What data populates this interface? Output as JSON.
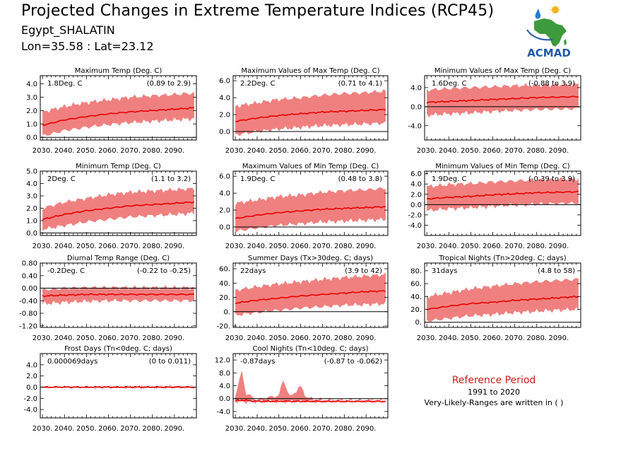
{
  "header": {
    "title": "Projected Changes in Extreme Temperature Indices (RCP45)",
    "location": "Egypt_SHALATIN",
    "coords": "Lon=35.58 : Lat=23.12"
  },
  "logo": {
    "text": "ACMAD",
    "colors": {
      "africa": "#3d9a3d",
      "text": "#1e5aa8",
      "sun": "#f2b01e",
      "drop": "#2a7bd0"
    }
  },
  "reference": {
    "title": "Reference Period",
    "years": "1991 to 2020",
    "note": "Very-Likely-Ranges are written in ( )"
  },
  "colors": {
    "band": "#f08080",
    "line": "#e80000",
    "zero": "#000000"
  },
  "chart_data": [
    {
      "type": "area",
      "title": "Maximum Temp (Deg. C)",
      "summary": "1.8Deg. C",
      "range": "(0.89 to 2.9)",
      "x_ticks": [
        "2030.",
        "2040.",
        "2050.",
        "2060.",
        "2070.",
        "2080.",
        "2090."
      ],
      "y_ticks": [
        "4.0",
        "3.0",
        "2.0",
        "1.0",
        "0.0"
      ],
      "ylim": [
        -0.2,
        4.6
      ],
      "x": [
        2030,
        2040,
        2050,
        2060,
        2070,
        2080,
        2090,
        2099
      ],
      "mean": [
        0.9,
        1.3,
        1.55,
        1.75,
        1.9,
        2.0,
        2.1,
        2.2
      ],
      "low": [
        0.1,
        0.5,
        0.75,
        0.95,
        1.1,
        1.2,
        1.3,
        1.4
      ],
      "high": [
        1.9,
        2.3,
        2.6,
        2.8,
        3.0,
        3.1,
        3.2,
        3.3
      ]
    },
    {
      "type": "area",
      "title": "Maximum Values of Max Temp (Deg. C)",
      "summary": "2.2Deg. C",
      "range": "(0.71 to 4.1)",
      "x_ticks": [
        "2030.",
        "2040.",
        "2050.",
        "2060.",
        "2070.",
        "2080.",
        "2090."
      ],
      "y_ticks": [
        "6.0",
        "4.0",
        "2.0",
        "0.0"
      ],
      "ylim": [
        -1.0,
        6.6
      ],
      "x": [
        2030,
        2040,
        2050,
        2060,
        2070,
        2080,
        2090,
        2099
      ],
      "mean": [
        1.2,
        1.6,
        1.9,
        2.1,
        2.3,
        2.4,
        2.5,
        2.6
      ],
      "low": [
        -0.4,
        0.0,
        0.3,
        0.5,
        0.7,
        0.8,
        0.9,
        1.0
      ],
      "high": [
        3.0,
        3.4,
        3.8,
        4.0,
        4.3,
        4.5,
        4.6,
        4.8
      ]
    },
    {
      "type": "area",
      "title": "Minimum Values of Max Temp (Deg. C)",
      "summary": "1.6Deg. C",
      "range": "(-0.88 to 3.9)",
      "x_ticks": [
        "2030.",
        "2040.",
        "2050.",
        "2060.",
        "2070.",
        "2080.",
        "2090."
      ],
      "y_ticks": [
        "4.0",
        "0.0",
        "-4.0"
      ],
      "ylim": [
        -7.0,
        6.5
      ],
      "x": [
        2030,
        2040,
        2050,
        2060,
        2070,
        2080,
        2090,
        2099
      ],
      "mean": [
        0.9,
        1.1,
        1.3,
        1.5,
        1.7,
        1.9,
        2.0,
        2.1
      ],
      "low": [
        -1.8,
        -1.5,
        -1.3,
        -1.0,
        -0.8,
        -0.6,
        -0.5,
        -0.4
      ],
      "high": [
        3.5,
        3.8,
        4.0,
        4.2,
        4.4,
        4.5,
        4.6,
        4.7
      ]
    },
    {
      "type": "area",
      "title": "Minimum Temp (Deg. C)",
      "summary": "2Deg. C",
      "range": "(1.1 to 3.2)",
      "x_ticks": [
        "2030.",
        "2040.",
        "2050.",
        "2060.",
        "2070.",
        "2080.",
        "2090."
      ],
      "y_ticks": [
        "5.0",
        "4.0",
        "3.0",
        "2.0",
        "1.0",
        "0.0"
      ],
      "ylim": [
        -0.2,
        5.0
      ],
      "x": [
        2030,
        2040,
        2050,
        2060,
        2070,
        2080,
        2090,
        2099
      ],
      "mean": [
        1.1,
        1.5,
        1.8,
        2.0,
        2.2,
        2.3,
        2.4,
        2.5
      ],
      "low": [
        0.3,
        0.6,
        0.9,
        1.1,
        1.3,
        1.4,
        1.5,
        1.6
      ],
      "high": [
        2.0,
        2.5,
        2.8,
        3.1,
        3.3,
        3.4,
        3.5,
        3.6
      ]
    },
    {
      "type": "area",
      "title": "Maximum Values of Min Temp (Deg. C)",
      "summary": "1.9Deg. C",
      "range": "(0.48 to 3.8)",
      "x_ticks": [
        "2030.",
        "2040.",
        "2050.",
        "2060.",
        "2070.",
        "2080.",
        "2090."
      ],
      "y_ticks": [
        "6.0",
        "4.0",
        "2.0",
        "0.0"
      ],
      "ylim": [
        -1.0,
        6.6
      ],
      "x": [
        2030,
        2040,
        2050,
        2060,
        2070,
        2080,
        2090,
        2099
      ],
      "mean": [
        1.0,
        1.4,
        1.7,
        1.9,
        2.1,
        2.2,
        2.3,
        2.4
      ],
      "low": [
        -0.5,
        -0.1,
        0.2,
        0.4,
        0.6,
        0.7,
        0.8,
        0.9
      ],
      "high": [
        2.8,
        3.2,
        3.6,
        3.8,
        4.1,
        4.3,
        4.4,
        4.6
      ]
    },
    {
      "type": "area",
      "title": "Minimum Values of Min Temp (Deg. C)",
      "summary": "1.9Deg. C",
      "range": "(-0.39 to 3.9)",
      "x_ticks": [
        "2030.",
        "2040.",
        "2050.",
        "2060.",
        "2070.",
        "2080.",
        "2090."
      ],
      "y_ticks": [
        "6.0",
        "4.0",
        "2.0",
        "0.0",
        "-2.0",
        "-4.0"
      ],
      "ylim": [
        -6.0,
        6.5
      ],
      "x": [
        2030,
        2040,
        2050,
        2060,
        2070,
        2080,
        2090,
        2099
      ],
      "mean": [
        1.1,
        1.4,
        1.6,
        1.9,
        2.1,
        2.3,
        2.4,
        2.5
      ],
      "low": [
        -1.2,
        -0.8,
        -0.6,
        -0.3,
        -0.1,
        0.1,
        0.2,
        0.3
      ],
      "high": [
        3.5,
        3.9,
        4.1,
        4.4,
        4.6,
        4.8,
        4.9,
        5.0
      ]
    },
    {
      "type": "area",
      "title": "Diurnal Temp Range (Deg. C)",
      "summary": "-0.2Deg. C",
      "range": "(-0.22 to -0.25)",
      "x_ticks": [
        "2030.",
        "2040.",
        "2050.",
        "2060.",
        "2070.",
        "2080.",
        "2090."
      ],
      "y_ticks": [
        "0.80",
        "0.40",
        "0.00",
        "-0.40",
        "-0.80",
        "-1.20"
      ],
      "ylim": [
        -1.25,
        0.8
      ],
      "x": [
        2030,
        2040,
        2050,
        2060,
        2070,
        2080,
        2090,
        2099
      ],
      "mean": [
        -0.25,
        -0.22,
        -0.2,
        -0.2,
        -0.2,
        -0.2,
        -0.2,
        -0.2
      ],
      "low": [
        -0.5,
        -0.45,
        -0.42,
        -0.4,
        -0.4,
        -0.4,
        -0.4,
        -0.4
      ],
      "high": [
        -0.05,
        0.0,
        0.02,
        0.02,
        0.02,
        0.02,
        0.02,
        0.02
      ]
    },
    {
      "type": "area",
      "title": "Summer Days (Tx>30deg. C; days)",
      "summary": "22days",
      "range": "(3.9 to 42)",
      "x_ticks": [
        "2030.",
        "2040.",
        "2050.",
        "2060.",
        "2070.",
        "2080.",
        "2090."
      ],
      "y_ticks": [
        "60.",
        "40.",
        "20.",
        "0.",
        "-20."
      ],
      "ylim": [
        -22,
        68
      ],
      "x": [
        2030,
        2040,
        2050,
        2060,
        2070,
        2080,
        2090,
        2099
      ],
      "mean": [
        12,
        16,
        19,
        22,
        24,
        26,
        28,
        29
      ],
      "low": [
        -5,
        -1,
        2,
        5,
        7,
        9,
        10,
        11
      ],
      "high": [
        30,
        35,
        39,
        42,
        45,
        48,
        50,
        52
      ]
    },
    {
      "type": "area",
      "title": "Tropical Nights (Tn>20deg. C; days)",
      "summary": "31days",
      "range": "(4.8 to 58)",
      "x_ticks": [
        "2030.",
        "2040.",
        "2050.",
        "2060.",
        "2070.",
        "2080.",
        "2090."
      ],
      "y_ticks": [
        "80.",
        "60.",
        "40.",
        "20.",
        "0."
      ],
      "ylim": [
        -8,
        92
      ],
      "x": [
        2030,
        2040,
        2050,
        2060,
        2070,
        2080,
        2090,
        2099
      ],
      "mean": [
        20,
        25,
        29,
        31,
        34,
        36,
        38,
        40
      ],
      "low": [
        2,
        6,
        10,
        12,
        15,
        17,
        19,
        20
      ],
      "high": [
        40,
        46,
        52,
        56,
        60,
        63,
        65,
        67
      ]
    },
    {
      "type": "area",
      "title": "Frost Days (Tn<0deg. C; days)",
      "summary": "0.000069days",
      "range": "(0 to 0.011)",
      "x_ticks": [
        "2030.",
        "2040.",
        "2050.",
        "2060.",
        "2070.",
        "2080.",
        "2090."
      ],
      "y_ticks": [
        "4.0",
        "2.0",
        "0.0",
        "-2.0",
        "-4.0"
      ],
      "ylim": [
        -5.5,
        6.0
      ],
      "x": [
        2030,
        2040,
        2050,
        2060,
        2070,
        2080,
        2090,
        2099
      ],
      "mean": [
        0,
        0,
        0,
        0,
        0,
        0,
        0,
        0
      ],
      "low": [
        0,
        0,
        0,
        0,
        0,
        0,
        0,
        0
      ],
      "high": [
        0.05,
        0.05,
        0.05,
        0.05,
        0.05,
        0.05,
        0.05,
        0.05
      ]
    },
    {
      "type": "area",
      "title": "Cool Nights (Tn<10deg. C; days)",
      "summary": "-0.87days",
      "range": "(-0.87 to -0.062)",
      "x_ticks": [
        "2030.",
        "2040.",
        "2050.",
        "2060.",
        "2070.",
        "2080.",
        "2090."
      ],
      "y_ticks": [
        "12.0",
        "8.0",
        "4.0",
        "0.0",
        "-4.0"
      ],
      "ylim": [
        -6.0,
        14.0
      ],
      "x": [
        2030,
        2033,
        2035,
        2040,
        2050,
        2052,
        2055,
        2060,
        2063,
        2070,
        2080,
        2090,
        2099
      ],
      "mean": [
        -0.7,
        -0.5,
        -0.6,
        -0.85,
        -0.85,
        -0.8,
        -0.85,
        -0.85,
        -0.85,
        -0.87,
        -0.87,
        -0.87,
        -0.87
      ],
      "low": [
        -0.9,
        -0.9,
        -0.9,
        -0.9,
        -0.9,
        -0.9,
        -0.9,
        -0.9,
        -0.9,
        -0.9,
        -0.9,
        -0.9,
        -0.9
      ],
      "high": [
        1.0,
        8.5,
        1.5,
        -0.3,
        1.0,
        6.0,
        0.5,
        3.8,
        0.2,
        -0.4,
        -0.5,
        -0.5,
        -0.5
      ]
    }
  ]
}
